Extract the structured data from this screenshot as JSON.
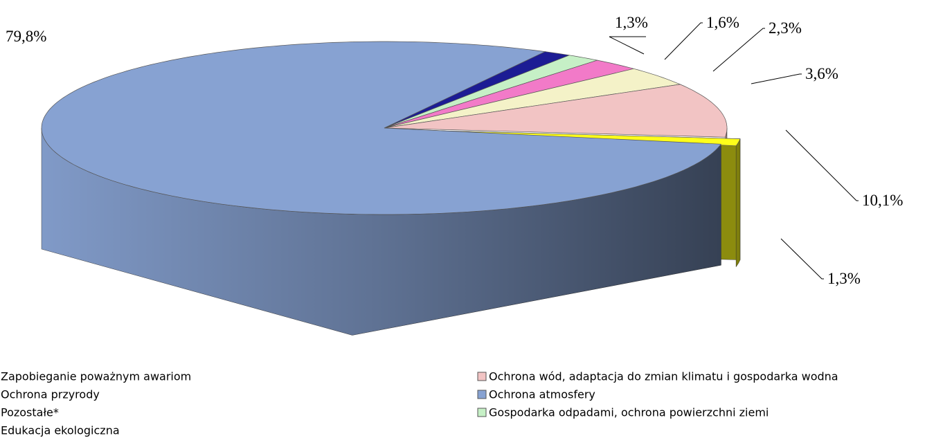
{
  "chart_data": {
    "type": "pie",
    "categories": [
      "Pozostałe*",
      "Gospodarka odpadami, ochrona powierzchni ziemi",
      "Zapobieganie poważnym awariom",
      "Edukacja ekologiczna",
      "Ochrona wód, adaptacja do zmian klimatu i gospodarka wodna",
      "Ochrona przyrody",
      "Ochrona atmosfery"
    ],
    "values": [
      1.3,
      1.6,
      2.3,
      3.6,
      10.1,
      1.3,
      79.8
    ],
    "value_labels": [
      "1,3%",
      "1,6%",
      "2,3%",
      "3,6%",
      "10,1%",
      "1,3%",
      "79,8%"
    ],
    "colors": [
      "#1c1c94",
      "#c6f0c6",
      "#f27ac8",
      "#f4f2c8",
      "#f2c4c4",
      "#ffff1a",
      "#87a2d2"
    ],
    "legend": "bottom"
  }
}
